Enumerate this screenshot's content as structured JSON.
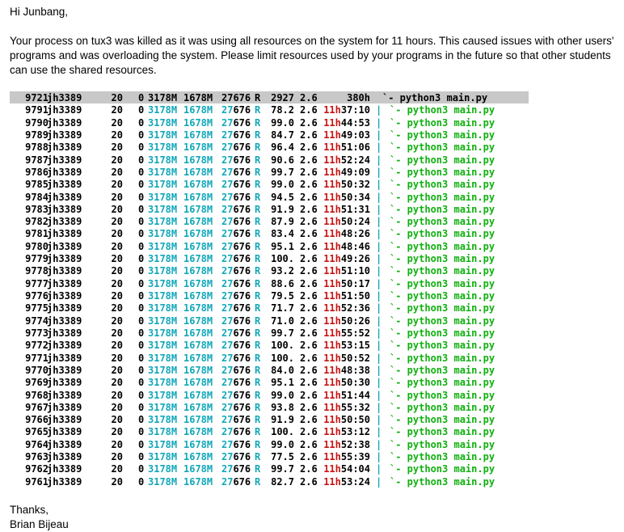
{
  "email": {
    "greeting": "Hi Junbang,",
    "body": "Your process on tux3 was killed as it was using all resources on the system for 11 hours. This caused issues with other users' programs and was overloading the system. Please limit resources used by your programs in the future so that other students can use the shared resources.",
    "closing": "Thanks,",
    "signature": "Brian Bijeau"
  },
  "colors": {
    "cyan": "#12a8b8",
    "red": "#c81414",
    "green": "#10b010",
    "selection": "#c8c8c8"
  },
  "processes": [
    {
      "pid": "9721",
      "user": "jh3389",
      "pri": "20",
      "ni": "0",
      "virt": "3178M",
      "res": "1678M",
      "shr": "27676",
      "s": "R",
      "cpu": "2927",
      "mem": "2.6",
      "time": "380h",
      "sep": "",
      "cmd": "`- python3 main.py",
      "selected": true
    },
    {
      "pid": "9791",
      "user": "jh3389",
      "pri": "20",
      "ni": "0",
      "virt": "3178M",
      "res": "1678M",
      "shr": "27676",
      "s": "R",
      "cpu": "78.2",
      "mem": "2.6",
      "time": "11h37:10",
      "sep": "|",
      "cmd": "`- python3 main.py"
    },
    {
      "pid": "9790",
      "user": "jh3389",
      "pri": "20",
      "ni": "0",
      "virt": "3178M",
      "res": "1678M",
      "shr": "27676",
      "s": "R",
      "cpu": "99.0",
      "mem": "2.6",
      "time": "11h44:53",
      "sep": "|",
      "cmd": "`- python3 main.py"
    },
    {
      "pid": "9789",
      "user": "jh3389",
      "pri": "20",
      "ni": "0",
      "virt": "3178M",
      "res": "1678M",
      "shr": "27676",
      "s": "R",
      "cpu": "84.7",
      "mem": "2.6",
      "time": "11h49:03",
      "sep": "|",
      "cmd": "`- python3 main.py"
    },
    {
      "pid": "9788",
      "user": "jh3389",
      "pri": "20",
      "ni": "0",
      "virt": "3178M",
      "res": "1678M",
      "shr": "27676",
      "s": "R",
      "cpu": "96.4",
      "mem": "2.6",
      "time": "11h51:06",
      "sep": "|",
      "cmd": "`- python3 main.py"
    },
    {
      "pid": "9787",
      "user": "jh3389",
      "pri": "20",
      "ni": "0",
      "virt": "3178M",
      "res": "1678M",
      "shr": "27676",
      "s": "R",
      "cpu": "90.6",
      "mem": "2.6",
      "time": "11h52:24",
      "sep": "|",
      "cmd": "`- python3 main.py"
    },
    {
      "pid": "9786",
      "user": "jh3389",
      "pri": "20",
      "ni": "0",
      "virt": "3178M",
      "res": "1678M",
      "shr": "27676",
      "s": "R",
      "cpu": "99.7",
      "mem": "2.6",
      "time": "11h49:09",
      "sep": "|",
      "cmd": "`- python3 main.py"
    },
    {
      "pid": "9785",
      "user": "jh3389",
      "pri": "20",
      "ni": "0",
      "virt": "3178M",
      "res": "1678M",
      "shr": "27676",
      "s": "R",
      "cpu": "99.0",
      "mem": "2.6",
      "time": "11h50:32",
      "sep": "|",
      "cmd": "`- python3 main.py"
    },
    {
      "pid": "9784",
      "user": "jh3389",
      "pri": "20",
      "ni": "0",
      "virt": "3178M",
      "res": "1678M",
      "shr": "27676",
      "s": "R",
      "cpu": "94.5",
      "mem": "2.6",
      "time": "11h50:34",
      "sep": "|",
      "cmd": "`- python3 main.py"
    },
    {
      "pid": "9783",
      "user": "jh3389",
      "pri": "20",
      "ni": "0",
      "virt": "3178M",
      "res": "1678M",
      "shr": "27676",
      "s": "R",
      "cpu": "91.9",
      "mem": "2.6",
      "time": "11h51:31",
      "sep": "|",
      "cmd": "`- python3 main.py"
    },
    {
      "pid": "9782",
      "user": "jh3389",
      "pri": "20",
      "ni": "0",
      "virt": "3178M",
      "res": "1678M",
      "shr": "27676",
      "s": "R",
      "cpu": "87.9",
      "mem": "2.6",
      "time": "11h50:24",
      "sep": "|",
      "cmd": "`- python3 main.py"
    },
    {
      "pid": "9781",
      "user": "jh3389",
      "pri": "20",
      "ni": "0",
      "virt": "3178M",
      "res": "1678M",
      "shr": "27676",
      "s": "R",
      "cpu": "83.4",
      "mem": "2.6",
      "time": "11h48:26",
      "sep": "|",
      "cmd": "`- python3 main.py"
    },
    {
      "pid": "9780",
      "user": "jh3389",
      "pri": "20",
      "ni": "0",
      "virt": "3178M",
      "res": "1678M",
      "shr": "27676",
      "s": "R",
      "cpu": "95.1",
      "mem": "2.6",
      "time": "11h48:46",
      "sep": "|",
      "cmd": "`- python3 main.py"
    },
    {
      "pid": "9779",
      "user": "jh3389",
      "pri": "20",
      "ni": "0",
      "virt": "3178M",
      "res": "1678M",
      "shr": "27676",
      "s": "R",
      "cpu": "100.",
      "mem": "2.6",
      "time": "11h49:26",
      "sep": "|",
      "cmd": "`- python3 main.py"
    },
    {
      "pid": "9778",
      "user": "jh3389",
      "pri": "20",
      "ni": "0",
      "virt": "3178M",
      "res": "1678M",
      "shr": "27676",
      "s": "R",
      "cpu": "93.2",
      "mem": "2.6",
      "time": "11h51:10",
      "sep": "|",
      "cmd": "`- python3 main.py"
    },
    {
      "pid": "9777",
      "user": "jh3389",
      "pri": "20",
      "ni": "0",
      "virt": "3178M",
      "res": "1678M",
      "shr": "27676",
      "s": "R",
      "cpu": "88.6",
      "mem": "2.6",
      "time": "11h50:17",
      "sep": "|",
      "cmd": "`- python3 main.py"
    },
    {
      "pid": "9776",
      "user": "jh3389",
      "pri": "20",
      "ni": "0",
      "virt": "3178M",
      "res": "1678M",
      "shr": "27676",
      "s": "R",
      "cpu": "79.5",
      "mem": "2.6",
      "time": "11h51:50",
      "sep": "|",
      "cmd": "`- python3 main.py"
    },
    {
      "pid": "9775",
      "user": "jh3389",
      "pri": "20",
      "ni": "0",
      "virt": "3178M",
      "res": "1678M",
      "shr": "27676",
      "s": "R",
      "cpu": "71.7",
      "mem": "2.6",
      "time": "11h52:36",
      "sep": "|",
      "cmd": "`- python3 main.py"
    },
    {
      "pid": "9774",
      "user": "jh3389",
      "pri": "20",
      "ni": "0",
      "virt": "3178M",
      "res": "1678M",
      "shr": "27676",
      "s": "R",
      "cpu": "71.0",
      "mem": "2.6",
      "time": "11h50:26",
      "sep": "|",
      "cmd": "`- python3 main.py"
    },
    {
      "pid": "9773",
      "user": "jh3389",
      "pri": "20",
      "ni": "0",
      "virt": "3178M",
      "res": "1678M",
      "shr": "27676",
      "s": "R",
      "cpu": "99.7",
      "mem": "2.6",
      "time": "11h55:52",
      "sep": "|",
      "cmd": "`- python3 main.py"
    },
    {
      "pid": "9772",
      "user": "jh3389",
      "pri": "20",
      "ni": "0",
      "virt": "3178M",
      "res": "1678M",
      "shr": "27676",
      "s": "R",
      "cpu": "100.",
      "mem": "2.6",
      "time": "11h53:15",
      "sep": "|",
      "cmd": "`- python3 main.py"
    },
    {
      "pid": "9771",
      "user": "jh3389",
      "pri": "20",
      "ni": "0",
      "virt": "3178M",
      "res": "1678M",
      "shr": "27676",
      "s": "R",
      "cpu": "100.",
      "mem": "2.6",
      "time": "11h50:52",
      "sep": "|",
      "cmd": "`- python3 main.py"
    },
    {
      "pid": "9770",
      "user": "jh3389",
      "pri": "20",
      "ni": "0",
      "virt": "3178M",
      "res": "1678M",
      "shr": "27676",
      "s": "R",
      "cpu": "84.0",
      "mem": "2.6",
      "time": "11h48:38",
      "sep": "|",
      "cmd": "`- python3 main.py"
    },
    {
      "pid": "9769",
      "user": "jh3389",
      "pri": "20",
      "ni": "0",
      "virt": "3178M",
      "res": "1678M",
      "shr": "27676",
      "s": "R",
      "cpu": "95.1",
      "mem": "2.6",
      "time": "11h50:30",
      "sep": "|",
      "cmd": "`- python3 main.py"
    },
    {
      "pid": "9768",
      "user": "jh3389",
      "pri": "20",
      "ni": "0",
      "virt": "3178M",
      "res": "1678M",
      "shr": "27676",
      "s": "R",
      "cpu": "99.0",
      "mem": "2.6",
      "time": "11h51:44",
      "sep": "|",
      "cmd": "`- python3 main.py"
    },
    {
      "pid": "9767",
      "user": "jh3389",
      "pri": "20",
      "ni": "0",
      "virt": "3178M",
      "res": "1678M",
      "shr": "27676",
      "s": "R",
      "cpu": "93.8",
      "mem": "2.6",
      "time": "11h55:32",
      "sep": "|",
      "cmd": "`- python3 main.py"
    },
    {
      "pid": "9766",
      "user": "jh3389",
      "pri": "20",
      "ni": "0",
      "virt": "3178M",
      "res": "1678M",
      "shr": "27676",
      "s": "R",
      "cpu": "91.9",
      "mem": "2.6",
      "time": "11h50:50",
      "sep": "|",
      "cmd": "`- python3 main.py"
    },
    {
      "pid": "9765",
      "user": "jh3389",
      "pri": "20",
      "ni": "0",
      "virt": "3178M",
      "res": "1678M",
      "shr": "27676",
      "s": "R",
      "cpu": "100.",
      "mem": "2.6",
      "time": "11h53:12",
      "sep": "|",
      "cmd": "`- python3 main.py"
    },
    {
      "pid": "9764",
      "user": "jh3389",
      "pri": "20",
      "ni": "0",
      "virt": "3178M",
      "res": "1678M",
      "shr": "27676",
      "s": "R",
      "cpu": "99.0",
      "mem": "2.6",
      "time": "11h52:38",
      "sep": "|",
      "cmd": "`- python3 main.py"
    },
    {
      "pid": "9763",
      "user": "jh3389",
      "pri": "20",
      "ni": "0",
      "virt": "3178M",
      "res": "1678M",
      "shr": "27676",
      "s": "R",
      "cpu": "77.5",
      "mem": "2.6",
      "time": "11h55:39",
      "sep": "|",
      "cmd": "`- python3 main.py"
    },
    {
      "pid": "9762",
      "user": "jh3389",
      "pri": "20",
      "ni": "0",
      "virt": "3178M",
      "res": "1678M",
      "shr": "27676",
      "s": "R",
      "cpu": "99.7",
      "mem": "2.6",
      "time": "11h54:04",
      "sep": "|",
      "cmd": "`- python3 main.py"
    },
    {
      "pid": "9761",
      "user": "jh3389",
      "pri": "20",
      "ni": "0",
      "virt": "3178M",
      "res": "1678M",
      "shr": "27676",
      "s": "R",
      "cpu": "82.7",
      "mem": "2.6",
      "time": "11h53:24",
      "sep": "|",
      "cmd": "`- python3 main.py"
    }
  ]
}
